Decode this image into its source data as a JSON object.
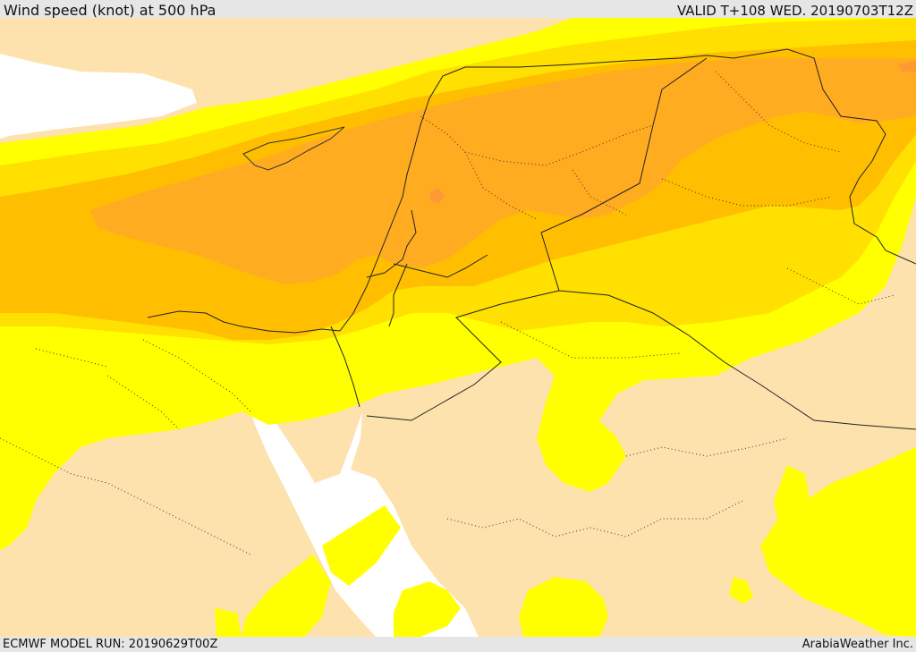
{
  "header": {
    "title": "Wind speed (knot) at 500 hPa",
    "valid_time": "VALID T+108 WED. 20190703T12Z"
  },
  "footer": {
    "model_run": "ECMWF MODEL RUN: 20190629T00Z",
    "credit": "ArabiaWeather Inc."
  },
  "colors": {
    "land_low": "#fde2ad",
    "band_yellow": "#ffff00",
    "band_gold": "#ffe000",
    "band_orange": "#ffbf00",
    "band_dark_orange": "#ffac21",
    "band_peak": "#ff9933",
    "water_white": "#ffffff",
    "border_line": "#222222"
  }
}
